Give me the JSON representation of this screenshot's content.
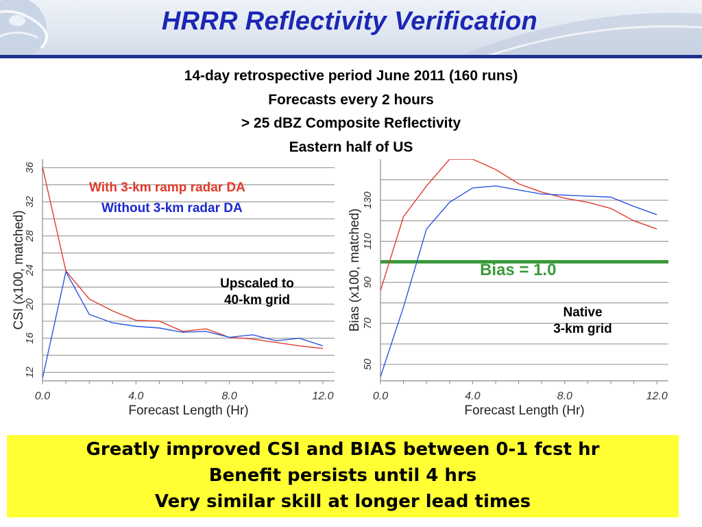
{
  "slide": {
    "title": "HRRR Reflectivity Verification",
    "subtitle_lines": [
      "14-day retrospective period June 2011 (160 runs)",
      "Forecasts every 2 hours",
      "> 25 dBZ Composite Reflectivity",
      "Eastern half of US"
    ],
    "summary_lines": [
      "Greatly improved CSI and BIAS between 0-1 fcst hr",
      "Benefit persists until 4 hrs",
      "Very similar skill at longer lead times"
    ]
  },
  "colors": {
    "title": "#1b27b3",
    "with_radar": "#e03a2a",
    "without_radar": "#2a55e0",
    "bias_line": "#3a9a3a",
    "summary_bg": "#ffff33"
  },
  "chart_data": [
    {
      "type": "line",
      "xlabel": "Forecast Length (Hr)",
      "ylabel": "CSI (x100, matched)",
      "xlim": [
        0,
        12.5
      ],
      "ylim": [
        11,
        37
      ],
      "x_ticks": [
        "0.0",
        "4.0",
        "8.0",
        "12.0"
      ],
      "x_tick_values": [
        0,
        4,
        8,
        12
      ],
      "y_ticks": [
        "12",
        "16",
        "20",
        "24",
        "28",
        "32",
        "36"
      ],
      "y_tick_values": [
        12,
        16,
        20,
        24,
        28,
        32,
        36
      ],
      "grid": true,
      "legend": [
        "With 3-km ramp radar DA",
        "Without 3-km radar DA"
      ],
      "annotation": [
        "Upscaled to",
        "40-km grid"
      ],
      "x": [
        0,
        1,
        2,
        3,
        4,
        5,
        6,
        7,
        8,
        9,
        10,
        11,
        12
      ],
      "series": [
        {
          "name": "With 3-km ramp radar DA",
          "color": "#e03a2a",
          "values": [
            36.1,
            23.9,
            20.6,
            19.2,
            18.1,
            18.0,
            16.8,
            17.1,
            16.1,
            15.9,
            15.5,
            15.1,
            14.8
          ]
        },
        {
          "name": "Without 3-km radar DA",
          "color": "#2a55e0",
          "values": [
            11.3,
            23.8,
            18.8,
            17.8,
            17.4,
            17.2,
            16.7,
            16.8,
            16.1,
            16.4,
            15.7,
            16.0,
            15.1
          ]
        }
      ]
    },
    {
      "type": "line",
      "xlabel": "Forecast Length (Hr)",
      "ylabel": "Bias (x100, matched)",
      "xlim": [
        0,
        12.5
      ],
      "ylim": [
        42,
        150
      ],
      "x_ticks": [
        "0.0",
        "4.0",
        "8.0",
        "12.0"
      ],
      "x_tick_values": [
        0,
        4,
        8,
        12
      ],
      "y_ticks": [
        "50",
        "70",
        "90",
        "110",
        "130"
      ],
      "y_tick_values": [
        50,
        70,
        90,
        110,
        130
      ],
      "grid": true,
      "reference_line": {
        "y": 100,
        "label": "Bias = 1.0",
        "color": "#3a9a3a"
      },
      "annotation": [
        "Native",
        "3-km grid"
      ],
      "x": [
        0,
        1,
        2,
        3,
        4,
        5,
        6,
        7,
        8,
        9,
        10,
        11,
        12
      ],
      "series": [
        {
          "name": "With 3-km ramp radar DA",
          "color": "#e03a2a",
          "values": [
            86,
            122,
            137,
            150,
            150,
            145,
            138,
            134,
            131,
            129,
            126,
            120,
            116
          ]
        },
        {
          "name": "Without 3-km radar DA",
          "color": "#2a55e0",
          "values": [
            44,
            78,
            116,
            129,
            136,
            137,
            135,
            133,
            132.5,
            132,
            131.5,
            127,
            123
          ]
        }
      ]
    }
  ]
}
